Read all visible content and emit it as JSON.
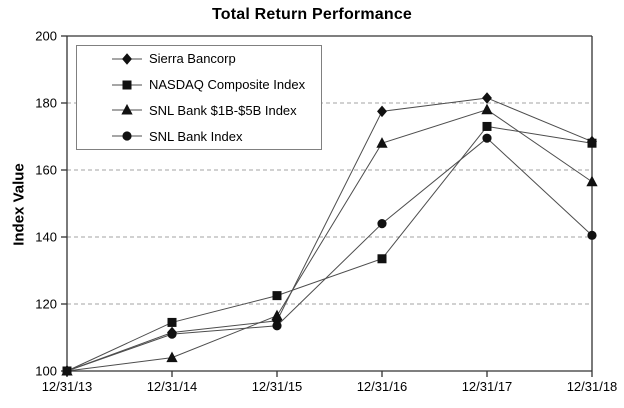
{
  "chart": {
    "title": "Total Return Performance",
    "y_axis_label": "Index Value"
  },
  "chart_data": {
    "type": "line",
    "title": "Total Return Performance",
    "xlabel": "",
    "ylabel": "Index Value",
    "x": [
      "12/31/13",
      "12/31/14",
      "12/31/15",
      "12/31/16",
      "12/31/17",
      "12/31/18"
    ],
    "ylim": [
      100,
      200
    ],
    "yticks": [
      100,
      120,
      140,
      160,
      180,
      200
    ],
    "grid": "horizontal dashed gridlines at 120, 140, 160, 180; solid plot border",
    "legend_position": "inside top-left",
    "series": [
      {
        "name": "Sierra Bancorp",
        "marker": "diamond",
        "values": [
          100,
          111.5,
          115,
          177.5,
          181.5,
          168.5
        ]
      },
      {
        "name": "NASDAQ Composite Index",
        "marker": "square",
        "values": [
          100,
          114.5,
          122.5,
          133.5,
          173,
          168
        ]
      },
      {
        "name": "SNL Bank $1B-$5B Index",
        "marker": "triangle",
        "values": [
          100,
          104,
          116.5,
          168,
          178,
          156.5
        ]
      },
      {
        "name": "SNL Bank Index",
        "marker": "circle",
        "values": [
          100,
          111,
          113.5,
          144,
          169.5,
          140.5
        ]
      }
    ],
    "colors": {
      "line": "#4d4d4d",
      "marker": "#111111",
      "grid": "#a3a3a3",
      "axis": "#333333",
      "legend_border": "#808080",
      "text": "#000000",
      "background": "#ffffff"
    }
  }
}
